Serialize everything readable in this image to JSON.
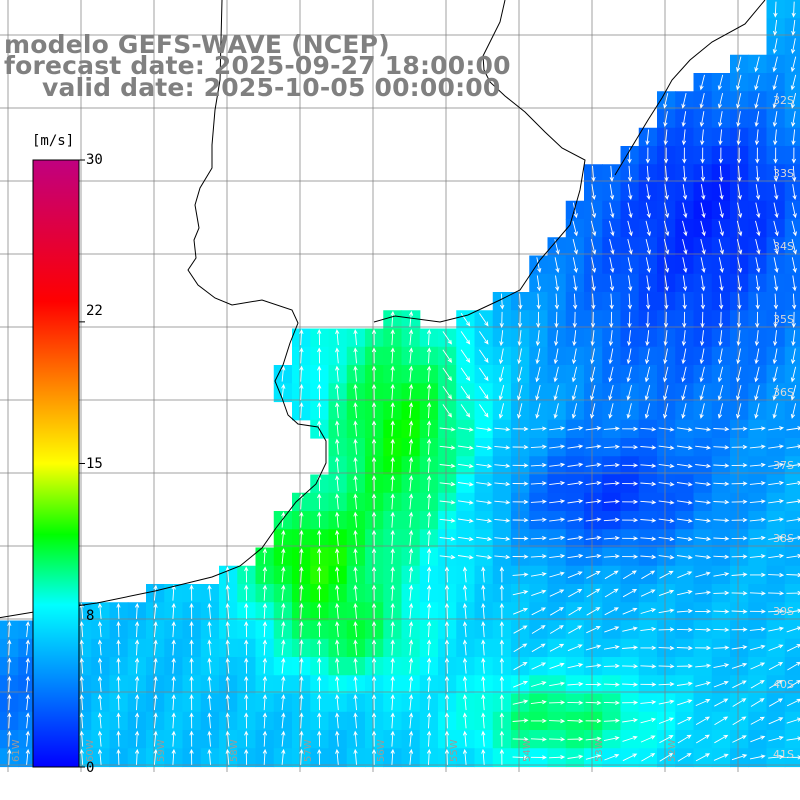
{
  "title": {
    "line1": "modelo GEFS-WAVE (NCEP)",
    "line2": "forecast date: 2025-09-27 18:00:00",
    "line3": "valid date: 2025-10-05 00:00:00"
  },
  "colorbar": {
    "unit": "[m/s]",
    "ticks": [
      "30",
      "22",
      "15",
      "8",
      "0"
    ],
    "tick_values": [
      30,
      22,
      15,
      8,
      0
    ],
    "colors": [
      "#0000ff",
      "#0080ff",
      "#00ffff",
      "#00ff00",
      "#ffff00",
      "#ff8000",
      "#ff0000",
      "#c00080"
    ]
  },
  "lat_labels": [
    "32S",
    "33S",
    "34S",
    "35S",
    "36S",
    "37S",
    "38S",
    "39S",
    "40S",
    "41S"
  ],
  "lon_labels": [
    "61W",
    "60W",
    "59W",
    "58W",
    "57W",
    "56W",
    "55W",
    "54W",
    "53W",
    "52W"
  ],
  "map": {
    "land_color": "#ffffff",
    "coastline_color": "#000000",
    "grid_color": "#808080",
    "arrow_color": "#ffffff"
  }
}
